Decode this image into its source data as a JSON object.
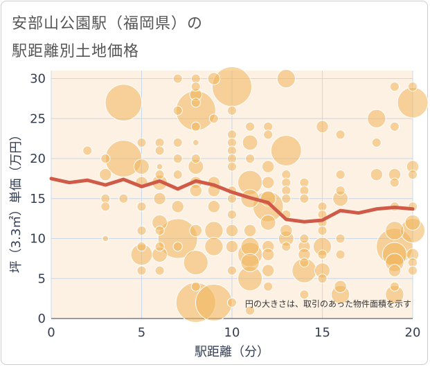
{
  "title_line1": "安部山公園駅（福岡県）の",
  "title_line2": "駅距離別土地価格",
  "note": "円の大きさは、取引のあった物件面積を示す",
  "chart_data": {
    "type": "scatter",
    "xlabel": "駅距離（分）",
    "ylabel": "坪（3.3㎡）単価（万円）",
    "xlim": [
      0,
      20
    ],
    "ylim": [
      0,
      31
    ],
    "x_ticks": [
      "0",
      "5",
      "10",
      "15",
      "20"
    ],
    "y_ticks": [
      "0",
      "5",
      "10",
      "15",
      "20",
      "25",
      "30"
    ],
    "grid": true,
    "colors": {
      "bubble": "#f0b45a",
      "trend": "#d05a48",
      "plot_bg": "#fdf1e4",
      "grid": "#c8d8e8"
    },
    "bubbles": [
      {
        "x": 2,
        "y": 21,
        "s": 3
      },
      {
        "x": 3,
        "y": 20,
        "s": 3
      },
      {
        "x": 3,
        "y": 18,
        "s": 4
      },
      {
        "x": 3,
        "y": 15,
        "s": 3
      },
      {
        "x": 3,
        "y": 14,
        "s": 3
      },
      {
        "x": 3,
        "y": 10,
        "s": 2
      },
      {
        "x": 4,
        "y": 27,
        "s": 12
      },
      {
        "x": 4,
        "y": 20,
        "s": 12
      },
      {
        "x": 4,
        "y": 15,
        "s": 3
      },
      {
        "x": 5,
        "y": 22,
        "s": 3
      },
      {
        "x": 5,
        "y": 19,
        "s": 5
      },
      {
        "x": 5,
        "y": 17,
        "s": 4
      },
      {
        "x": 5,
        "y": 14,
        "s": 3
      },
      {
        "x": 5,
        "y": 11,
        "s": 3
      },
      {
        "x": 5,
        "y": 9,
        "s": 3
      },
      {
        "x": 5,
        "y": 8,
        "s": 7
      },
      {
        "x": 5,
        "y": 6,
        "s": 3
      },
      {
        "x": 6,
        "y": 22,
        "s": 3
      },
      {
        "x": 6,
        "y": 21,
        "s": 3
      },
      {
        "x": 6,
        "y": 19,
        "s": 2
      },
      {
        "x": 6,
        "y": 18,
        "s": 3
      },
      {
        "x": 6,
        "y": 17,
        "s": 5
      },
      {
        "x": 6,
        "y": 15,
        "s": 4
      },
      {
        "x": 6,
        "y": 12,
        "s": 5
      },
      {
        "x": 6,
        "y": 11,
        "s": 3
      },
      {
        "x": 6,
        "y": 9,
        "s": 3
      },
      {
        "x": 6,
        "y": 8,
        "s": 5
      },
      {
        "x": 6,
        "y": 6,
        "s": 3
      },
      {
        "x": 7,
        "y": 30,
        "s": 3
      },
      {
        "x": 7,
        "y": 26,
        "s": 3
      },
      {
        "x": 7,
        "y": 22,
        "s": 3
      },
      {
        "x": 7,
        "y": 20,
        "s": 3
      },
      {
        "x": 7,
        "y": 18,
        "s": 3
      },
      {
        "x": 7,
        "y": 14,
        "s": 4
      },
      {
        "x": 7,
        "y": 10,
        "s": 13
      },
      {
        "x": 7,
        "y": 9,
        "s": 3
      },
      {
        "x": 8,
        "y": 30,
        "s": 3
      },
      {
        "x": 8,
        "y": 29,
        "s": 3
      },
      {
        "x": 8,
        "y": 28,
        "s": 4
      },
      {
        "x": 8,
        "y": 27,
        "s": 3
      },
      {
        "x": 8,
        "y": 26,
        "s": 13
      },
      {
        "x": 8,
        "y": 24,
        "s": 3
      },
      {
        "x": 8,
        "y": 22,
        "s": 2
      },
      {
        "x": 8,
        "y": 20,
        "s": 3
      },
      {
        "x": 8,
        "y": 19,
        "s": 5
      },
      {
        "x": 8,
        "y": 17,
        "s": 4
      },
      {
        "x": 8,
        "y": 16,
        "s": 4
      },
      {
        "x": 8,
        "y": 11,
        "s": 4
      },
      {
        "x": 8,
        "y": 7,
        "s": 8
      },
      {
        "x": 8,
        "y": 4,
        "s": 3
      },
      {
        "x": 8,
        "y": 2,
        "s": 13
      },
      {
        "x": 9,
        "y": 30,
        "s": 4
      },
      {
        "x": 9,
        "y": 25,
        "s": 3
      },
      {
        "x": 9,
        "y": 17,
        "s": 4
      },
      {
        "x": 9,
        "y": 16,
        "s": 4
      },
      {
        "x": 9,
        "y": 14,
        "s": 4
      },
      {
        "x": 9,
        "y": 11,
        "s": 6
      },
      {
        "x": 9,
        "y": 9,
        "s": 6
      },
      {
        "x": 9,
        "y": 2,
        "s": 12
      },
      {
        "x": 10,
        "y": 29,
        "s": 13
      },
      {
        "x": 10,
        "y": 26,
        "s": 3
      },
      {
        "x": 10,
        "y": 23,
        "s": 3
      },
      {
        "x": 10,
        "y": 22,
        "s": 3
      },
      {
        "x": 10,
        "y": 21,
        "s": 3
      },
      {
        "x": 10,
        "y": 20,
        "s": 3
      },
      {
        "x": 10,
        "y": 19,
        "s": 3
      },
      {
        "x": 10,
        "y": 16,
        "s": 3
      },
      {
        "x": 10,
        "y": 15,
        "s": 3
      },
      {
        "x": 10,
        "y": 13,
        "s": 3
      },
      {
        "x": 10,
        "y": 11,
        "s": 4
      },
      {
        "x": 10,
        "y": 9,
        "s": 4
      },
      {
        "x": 10,
        "y": 6,
        "s": 3
      },
      {
        "x": 10,
        "y": 2,
        "s": 3
      },
      {
        "x": 11,
        "y": 24,
        "s": 3
      },
      {
        "x": 11,
        "y": 22,
        "s": 5
      },
      {
        "x": 11,
        "y": 20,
        "s": 3
      },
      {
        "x": 11,
        "y": 17,
        "s": 8
      },
      {
        "x": 11,
        "y": 15,
        "s": 6
      },
      {
        "x": 11,
        "y": 11,
        "s": 4
      },
      {
        "x": 11,
        "y": 9,
        "s": 6
      },
      {
        "x": 11,
        "y": 8,
        "s": 8
      },
      {
        "x": 11,
        "y": 7,
        "s": 6
      },
      {
        "x": 11,
        "y": 5,
        "s": 8
      },
      {
        "x": 11,
        "y": 1,
        "s": 3
      },
      {
        "x": 12,
        "y": 24,
        "s": 3
      },
      {
        "x": 12,
        "y": 23,
        "s": 3
      },
      {
        "x": 12,
        "y": 19,
        "s": 4
      },
      {
        "x": 12,
        "y": 17,
        "s": 4
      },
      {
        "x": 12,
        "y": 15,
        "s": 5
      },
      {
        "x": 12,
        "y": 14,
        "s": 10
      },
      {
        "x": 12,
        "y": 12,
        "s": 5
      },
      {
        "x": 12,
        "y": 9,
        "s": 4
      },
      {
        "x": 12,
        "y": 8,
        "s": 4
      },
      {
        "x": 12,
        "y": 6,
        "s": 4
      },
      {
        "x": 12,
        "y": 4,
        "s": 3
      },
      {
        "x": 13,
        "y": 30,
        "s": 6
      },
      {
        "x": 13,
        "y": 21,
        "s": 10
      },
      {
        "x": 13,
        "y": 18,
        "s": 3
      },
      {
        "x": 13,
        "y": 17,
        "s": 3
      },
      {
        "x": 13,
        "y": 16,
        "s": 3
      },
      {
        "x": 13,
        "y": 15,
        "s": 3
      },
      {
        "x": 13,
        "y": 13,
        "s": 3
      },
      {
        "x": 13,
        "y": 11,
        "s": 4
      },
      {
        "x": 13,
        "y": 10,
        "s": 5
      },
      {
        "x": 13,
        "y": 9,
        "s": 3
      },
      {
        "x": 14,
        "y": 17,
        "s": 3
      },
      {
        "x": 14,
        "y": 16,
        "s": 3
      },
      {
        "x": 14,
        "y": 15,
        "s": 3
      },
      {
        "x": 14,
        "y": 10,
        "s": 3
      },
      {
        "x": 14,
        "y": 9,
        "s": 4
      },
      {
        "x": 14,
        "y": 8,
        "s": 4
      },
      {
        "x": 14,
        "y": 7,
        "s": 3
      },
      {
        "x": 14,
        "y": 6,
        "s": 8
      },
      {
        "x": 14,
        "y": 3,
        "s": 3
      },
      {
        "x": 15,
        "y": 24,
        "s": 4
      },
      {
        "x": 15,
        "y": 14,
        "s": 3
      },
      {
        "x": 15,
        "y": 13,
        "s": 3
      },
      {
        "x": 15,
        "y": 12,
        "s": 3
      },
      {
        "x": 15,
        "y": 11,
        "s": 3
      },
      {
        "x": 15,
        "y": 9,
        "s": 6
      },
      {
        "x": 15,
        "y": 8,
        "s": 3
      },
      {
        "x": 15,
        "y": 6,
        "s": 5
      },
      {
        "x": 15,
        "y": 5,
        "s": 3
      },
      {
        "x": 16,
        "y": 23,
        "s": 3
      },
      {
        "x": 16,
        "y": 18,
        "s": 3
      },
      {
        "x": 16,
        "y": 16,
        "s": 3
      },
      {
        "x": 16,
        "y": 15,
        "s": 5
      },
      {
        "x": 16,
        "y": 10,
        "s": 3
      },
      {
        "x": 16,
        "y": 8,
        "s": 3
      },
      {
        "x": 16,
        "y": 4,
        "s": 4
      },
      {
        "x": 16,
        "y": 3,
        "s": 6
      },
      {
        "x": 18,
        "y": 25,
        "s": 6
      },
      {
        "x": 18,
        "y": 22,
        "s": 3
      },
      {
        "x": 18,
        "y": 18,
        "s": 4
      },
      {
        "x": 19,
        "y": 29,
        "s": 3
      },
      {
        "x": 19,
        "y": 24,
        "s": 3
      },
      {
        "x": 19,
        "y": 18,
        "s": 4
      },
      {
        "x": 19,
        "y": 17,
        "s": 3
      },
      {
        "x": 19,
        "y": 14,
        "s": 3
      },
      {
        "x": 19,
        "y": 11,
        "s": 6
      },
      {
        "x": 19,
        "y": 9,
        "s": 12
      },
      {
        "x": 19,
        "y": 8,
        "s": 8
      },
      {
        "x": 19,
        "y": 7,
        "s": 6
      },
      {
        "x": 19,
        "y": 6,
        "s": 4
      },
      {
        "x": 19,
        "y": 4,
        "s": 3
      },
      {
        "x": 19,
        "y": 3,
        "s": 6
      },
      {
        "x": 20,
        "y": 29,
        "s": 3
      },
      {
        "x": 20,
        "y": 27,
        "s": 10
      },
      {
        "x": 20,
        "y": 19,
        "s": 4
      },
      {
        "x": 20,
        "y": 18,
        "s": 3
      },
      {
        "x": 20,
        "y": 14,
        "s": 3
      },
      {
        "x": 20,
        "y": 12,
        "s": 5
      },
      {
        "x": 20,
        "y": 11,
        "s": 8
      },
      {
        "x": 20,
        "y": 8,
        "s": 4
      },
      {
        "x": 20,
        "y": 7,
        "s": 3
      },
      {
        "x": 20,
        "y": 6,
        "s": 3
      }
    ],
    "trend": {
      "x": [
        0,
        1,
        2,
        3,
        4,
        5,
        6,
        7,
        8,
        9,
        10,
        11,
        12,
        13,
        14,
        15,
        16,
        17,
        18,
        19,
        20
      ],
      "y": [
        17.5,
        17.0,
        17.3,
        16.7,
        17.4,
        16.5,
        17.2,
        16.2,
        17.2,
        16.7,
        15.8,
        15.1,
        14.5,
        12.4,
        12.1,
        12.3,
        13.5,
        13.2,
        13.7,
        13.9,
        13.7
      ]
    }
  }
}
